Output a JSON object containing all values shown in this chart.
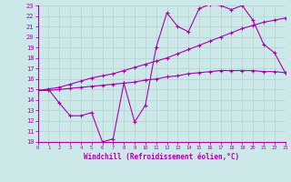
{
  "bg_color": "#cce8e8",
  "line_color": "#aa00aa",
  "xlabel": "Windchill (Refroidissement éolien,°C)",
  "xlim": [
    0,
    23
  ],
  "ylim": [
    10,
    23
  ],
  "yticks": [
    10,
    11,
    12,
    13,
    14,
    15,
    16,
    17,
    18,
    19,
    20,
    21,
    22,
    23
  ],
  "xticks": [
    0,
    1,
    2,
    3,
    4,
    5,
    6,
    7,
    8,
    9,
    10,
    11,
    12,
    13,
    14,
    15,
    16,
    17,
    18,
    19,
    20,
    21,
    22,
    23
  ],
  "line1_x": [
    0,
    1,
    2,
    3,
    4,
    5,
    6,
    7,
    8,
    9,
    10,
    11,
    12,
    13,
    14,
    15,
    16,
    17,
    18,
    19,
    20,
    21,
    22,
    23
  ],
  "line1_y": [
    14.9,
    15.0,
    13.7,
    12.5,
    12.5,
    12.8,
    10.0,
    10.3,
    15.6,
    11.9,
    13.5,
    19.0,
    22.3,
    21.0,
    20.5,
    22.7,
    23.1,
    23.0,
    22.6,
    23.0,
    21.6,
    19.3,
    18.5,
    16.6
  ],
  "line2_x": [
    0,
    2,
    3,
    4,
    5,
    6,
    7,
    8,
    9,
    10,
    11,
    12,
    13,
    14,
    15,
    16,
    17,
    18,
    19,
    20,
    21,
    22,
    23
  ],
  "line2_y": [
    14.9,
    15.2,
    15.5,
    15.8,
    16.1,
    16.3,
    16.5,
    16.8,
    17.1,
    17.4,
    17.7,
    18.0,
    18.4,
    18.8,
    19.2,
    19.6,
    20.0,
    20.4,
    20.8,
    21.1,
    21.4,
    21.6,
    21.8
  ],
  "line3_x": [
    0,
    1,
    2,
    3,
    4,
    5,
    6,
    7,
    8,
    9,
    10,
    11,
    12,
    13,
    14,
    15,
    16,
    17,
    18,
    19,
    20,
    21,
    22,
    23
  ],
  "line3_y": [
    14.9,
    14.9,
    15.0,
    15.1,
    15.2,
    15.3,
    15.4,
    15.5,
    15.6,
    15.7,
    15.9,
    16.0,
    16.2,
    16.3,
    16.5,
    16.6,
    16.7,
    16.8,
    16.8,
    16.8,
    16.8,
    16.7,
    16.7,
    16.6
  ]
}
